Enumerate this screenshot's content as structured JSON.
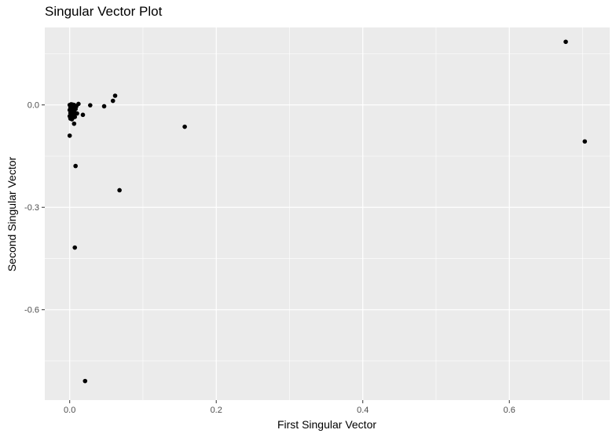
{
  "chart_data": {
    "type": "scatter",
    "title": "Singular Vector Plot",
    "xlabel": "First Singular Vector",
    "ylabel": "Second Singular Vector",
    "xlim": [
      -0.034,
      0.737
    ],
    "ylim": [
      -0.865,
      0.227
    ],
    "xticks": [
      0.0,
      0.2,
      0.4,
      0.6
    ],
    "xtick_labels": [
      "0.0",
      "0.2",
      "0.4",
      "0.6"
    ],
    "yticks": [
      0.0,
      -0.3,
      -0.6
    ],
    "ytick_labels": [
      "0.0",
      "-0.3",
      "-0.6"
    ],
    "grid": true,
    "legend": "none",
    "colors": {
      "panel_background": "#ebebeb",
      "grid": "#ffffff",
      "point": "#000000"
    },
    "points": [
      {
        "x": 0.677,
        "y": 0.185
      },
      {
        "x": 0.703,
        "y": -0.107
      },
      {
        "x": 0.157,
        "y": -0.064
      },
      {
        "x": 0.062,
        "y": 0.027
      },
      {
        "x": 0.059,
        "y": 0.012
      },
      {
        "x": 0.047,
        "y": -0.004
      },
      {
        "x": 0.028,
        "y": -0.001
      },
      {
        "x": 0.018,
        "y": -0.029
      },
      {
        "x": 0.012,
        "y": 0.003
      },
      {
        "x": 0.01,
        "y": -0.025
      },
      {
        "x": 0.068,
        "y": -0.25
      },
      {
        "x": 0.008,
        "y": -0.179
      },
      {
        "x": 0.007,
        "y": -0.418
      },
      {
        "x": 0.021,
        "y": -0.809
      },
      {
        "x": 0.0,
        "y": -0.09
      },
      {
        "x": 0.006,
        "y": -0.055
      },
      {
        "x": 0.0,
        "y": 0.0
      },
      {
        "x": 0.002,
        "y": 0.002
      },
      {
        "x": 0.004,
        "y": 0.001
      },
      {
        "x": 0.006,
        "y": 0.0
      },
      {
        "x": 0.001,
        "y": -0.008
      },
      {
        "x": 0.003,
        "y": -0.01
      },
      {
        "x": 0.005,
        "y": -0.006
      },
      {
        "x": 0.0,
        "y": -0.015
      },
      {
        "x": 0.002,
        "y": -0.018
      },
      {
        "x": 0.004,
        "y": -0.016
      },
      {
        "x": 0.006,
        "y": -0.02
      },
      {
        "x": 0.001,
        "y": -0.024
      },
      {
        "x": 0.003,
        "y": -0.027
      },
      {
        "x": 0.005,
        "y": -0.03
      },
      {
        "x": 0.0,
        "y": -0.033
      },
      {
        "x": 0.002,
        "y": -0.036
      },
      {
        "x": 0.004,
        "y": -0.038
      },
      {
        "x": 0.007,
        "y": -0.035
      },
      {
        "x": 0.001,
        "y": -0.04
      },
      {
        "x": 0.003,
        "y": -0.042
      },
      {
        "x": 0.008,
        "y": -0.012
      },
      {
        "x": 0.009,
        "y": -0.004
      }
    ]
  }
}
